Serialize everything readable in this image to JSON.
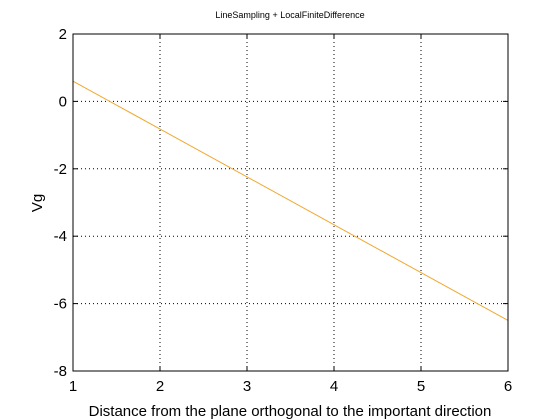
{
  "chart_data": {
    "type": "line",
    "title": "LineSampling + LocalFiniteDifference",
    "xlabel": "Distance from the plane orthogonal to the important direction",
    "ylabel": "Vg",
    "xlim": [
      1,
      6
    ],
    "ylim": [
      -8,
      2
    ],
    "xticks": [
      1,
      2,
      3,
      4,
      5,
      6
    ],
    "yticks": [
      -8,
      -6,
      -4,
      -2,
      0,
      2
    ],
    "grid": true,
    "grid_style": "dotted",
    "series": [
      {
        "color": "#f0a830",
        "x": [
          1,
          6
        ],
        "y": [
          0.6,
          -6.5
        ]
      }
    ]
  }
}
